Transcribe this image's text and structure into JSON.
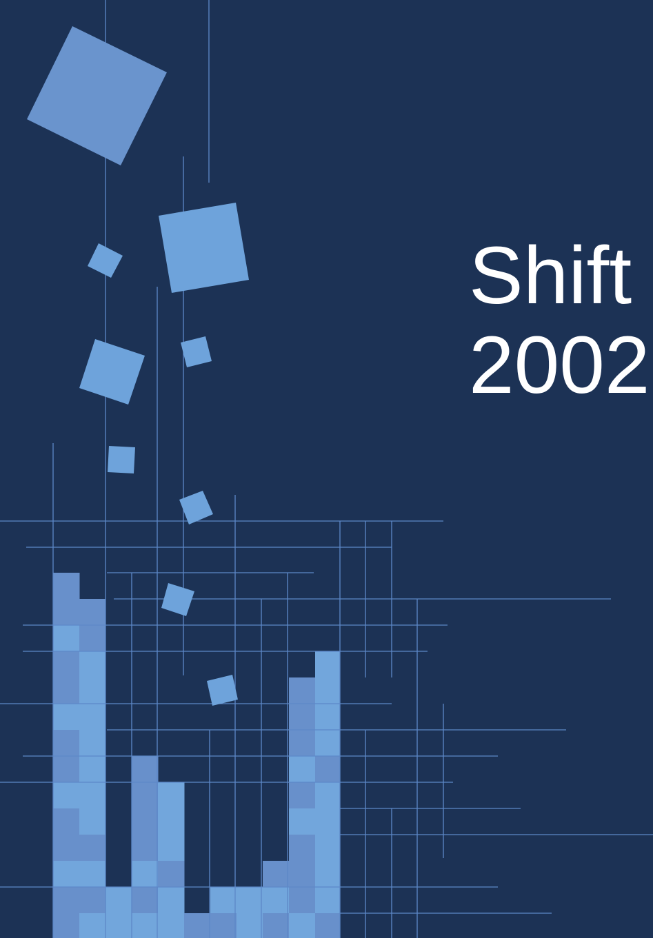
{
  "title": {
    "line1": "Shift",
    "line2": "2002"
  }
}
